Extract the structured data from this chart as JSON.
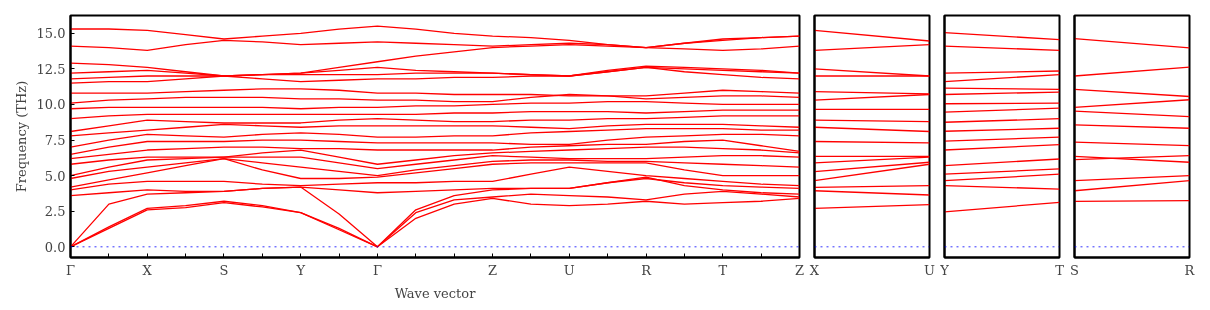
{
  "chart_data": [
    {
      "type": "line",
      "xlabel": "Wave vector",
      "ylabel": "Frequency (THz)",
      "categories": [
        "Γ",
        null,
        "X",
        null,
        "S",
        null,
        "Y",
        null,
        "Γ",
        null,
        null,
        "Z",
        null,
        "U",
        null,
        "R",
        null,
        "T",
        null,
        "Z"
      ],
      "ylim": [
        -0.75,
        16.25
      ],
      "yticks": [
        {
          "value": 0,
          "label": "0.0"
        },
        {
          "value": 2.5,
          "label": "2.5"
        },
        {
          "value": 5,
          "label": "5.0"
        },
        {
          "value": 7.5,
          "label": "7.5"
        },
        {
          "value": 10,
          "label": "10.0"
        },
        {
          "value": 12.5,
          "label": "12.5"
        },
        {
          "value": 15,
          "label": "15.0"
        }
      ],
      "ref_lines": [
        {
          "axis": "y",
          "value": 0,
          "color": "#0000ff",
          "line_style": "dotted"
        }
      ],
      "series": [
        {
          "color": "#ff0000",
          "values": [
            0,
            1.3,
            2.6,
            2.75,
            3.1,
            2.8,
            2.4,
            1.2,
            0,
            2.0,
            3.0,
            3.4,
            3.0,
            2.9,
            3.0,
            3.2,
            3.0,
            3.1,
            3.2,
            3.4
          ]
        },
        {
          "color": "#ff0000",
          "values": [
            0,
            1.4,
            2.7,
            2.9,
            3.2,
            2.9,
            2.4,
            1.3,
            0,
            2.4,
            3.3,
            3.5,
            3.7,
            3.6,
            3.5,
            3.3,
            3.7,
            3.9,
            3.7,
            3.5
          ]
        },
        {
          "color": "#ff0000",
          "values": [
            0,
            3.0,
            3.7,
            3.8,
            3.9,
            4.1,
            4.2,
            2.3,
            0,
            2.6,
            3.6,
            4.0,
            4.1,
            4.1,
            4.5,
            4.9,
            4.3,
            4.0,
            3.8,
            3.7
          ]
        },
        {
          "color": "#ff0000",
          "values": [
            3.6,
            3.8,
            4.0,
            3.9,
            3.9,
            4.1,
            4.2,
            4.0,
            3.8,
            3.9,
            4.0,
            4.1,
            4.1,
            4.1,
            4.5,
            4.8,
            4.5,
            4.3,
            4.2,
            4.1
          ]
        },
        {
          "color": "#ff0000",
          "values": [
            4.0,
            4.4,
            4.6,
            4.6,
            4.6,
            4.4,
            4.3,
            4.4,
            4.5,
            4.5,
            4.6,
            4.6,
            5.1,
            5.6,
            5.3,
            5.0,
            4.8,
            4.6,
            4.4,
            4.3
          ]
        },
        {
          "color": "#ff0000",
          "values": [
            4.2,
            4.7,
            5.2,
            5.7,
            6.2,
            5.4,
            4.8,
            4.8,
            4.9,
            5.2,
            5.5,
            5.8,
            5.9,
            5.9,
            5.9,
            5.9,
            5.4,
            5.0,
            5.0,
            5.0
          ]
        },
        {
          "color": "#ff0000",
          "values": [
            4.8,
            5.3,
            5.6,
            5.9,
            6.2,
            5.9,
            5.6,
            5.3,
            5.0,
            5.4,
            5.7,
            6.0,
            6.1,
            6.1,
            6.0,
            6.0,
            5.9,
            5.8,
            5.7,
            5.6
          ]
        },
        {
          "color": "#ff0000",
          "values": [
            5.0,
            5.6,
            6.1,
            6.2,
            6.3,
            6.3,
            6.3,
            5.9,
            5.5,
            5.8,
            6.1,
            6.4,
            6.3,
            6.2,
            6.2,
            6.2,
            6.3,
            6.4,
            6.4,
            6.3
          ]
        },
        {
          "color": "#ff0000",
          "values": [
            5.8,
            6.1,
            6.3,
            6.3,
            6.3,
            6.6,
            6.8,
            6.3,
            5.8,
            6.1,
            6.4,
            6.6,
            6.7,
            6.8,
            6.9,
            7.0,
            7.0,
            6.9,
            6.8,
            6.6
          ]
        },
        {
          "color": "#ff0000",
          "values": [
            6.2,
            6.5,
            6.8,
            6.9,
            7.0,
            7.0,
            6.9,
            6.9,
            6.8,
            6.8,
            6.8,
            6.8,
            7.0,
            7.1,
            7.2,
            7.2,
            7.4,
            7.5,
            7.1,
            6.7
          ]
        },
        {
          "color": "#ff0000",
          "values": [
            6.5,
            7.0,
            7.4,
            7.4,
            7.4,
            7.5,
            7.5,
            7.4,
            7.3,
            7.3,
            7.3,
            7.3,
            7.2,
            7.2,
            7.5,
            7.7,
            7.8,
            7.9,
            7.9,
            7.8
          ]
        },
        {
          "color": "#ff0000",
          "values": [
            7.0,
            7.5,
            7.9,
            7.8,
            7.7,
            7.9,
            8.0,
            7.9,
            7.7,
            7.7,
            7.8,
            7.8,
            8.0,
            8.1,
            8.2,
            8.3,
            8.3,
            8.3,
            8.2,
            8.2
          ]
        },
        {
          "color": "#ff0000",
          "values": [
            7.8,
            8.0,
            8.2,
            8.4,
            8.6,
            8.5,
            8.4,
            8.5,
            8.5,
            8.5,
            8.5,
            8.5,
            8.4,
            8.3,
            8.5,
            8.6,
            8.6,
            8.6,
            8.5,
            8.4
          ]
        },
        {
          "color": "#ff0000",
          "values": [
            8.1,
            8.5,
            8.9,
            8.8,
            8.7,
            8.7,
            8.7,
            8.9,
            9.0,
            8.9,
            8.8,
            8.8,
            8.9,
            8.9,
            9.0,
            9.0,
            9.1,
            9.2,
            9.2,
            9.2
          ]
        },
        {
          "color": "#ff0000",
          "values": [
            9.0,
            9.2,
            9.3,
            9.3,
            9.3,
            9.3,
            9.3,
            9.3,
            9.3,
            9.3,
            9.4,
            9.4,
            9.5,
            9.5,
            9.5,
            9.4,
            9.5,
            9.6,
            9.6,
            9.6
          ]
        },
        {
          "color": "#ff0000",
          "values": [
            9.7,
            9.8,
            9.8,
            9.8,
            9.8,
            9.8,
            9.7,
            9.8,
            9.8,
            9.9,
            9.9,
            10.0,
            10.1,
            10.1,
            10.2,
            10.2,
            10.1,
            10.0,
            10.0,
            10.0
          ]
        },
        {
          "color": "#ff0000",
          "values": [
            10.1,
            10.3,
            10.4,
            10.5,
            10.5,
            10.5,
            10.4,
            10.4,
            10.3,
            10.3,
            10.2,
            10.2,
            10.5,
            10.7,
            10.6,
            10.4,
            10.5,
            10.6,
            10.6,
            10.5
          ]
        },
        {
          "color": "#ff0000",
          "values": [
            10.8,
            10.8,
            10.8,
            10.9,
            11.0,
            11.1,
            11.1,
            11.0,
            10.8,
            10.8,
            10.7,
            10.7,
            10.7,
            10.6,
            10.6,
            10.6,
            10.8,
            11.0,
            10.9,
            10.8
          ]
        },
        {
          "color": "#ff0000",
          "values": [
            11.5,
            11.6,
            11.6,
            11.8,
            12.0,
            11.8,
            11.6,
            11.7,
            11.8,
            11.8,
            11.9,
            11.9,
            12.0,
            12.0,
            12.3,
            12.6,
            12.3,
            12.1,
            11.9,
            11.8
          ]
        },
        {
          "color": "#ff0000",
          "values": [
            11.8,
            11.9,
            12.0,
            12.0,
            12.0,
            12.1,
            12.1,
            12.1,
            12.1,
            12.2,
            12.2,
            12.2,
            12.1,
            12.0,
            12.3,
            12.6,
            12.5,
            12.4,
            12.3,
            12.2
          ]
        },
        {
          "color": "#ff0000",
          "values": [
            12.2,
            12.3,
            12.4,
            12.2,
            12.0,
            12.1,
            12.2,
            12.4,
            12.6,
            12.4,
            12.3,
            12.2,
            12.1,
            12.0,
            12.4,
            12.7,
            12.6,
            12.5,
            12.4,
            12.2
          ]
        },
        {
          "color": "#ff0000",
          "values": [
            12.9,
            12.8,
            12.6,
            12.3,
            12.0,
            12.1,
            12.2,
            12.6,
            13.0,
            13.4,
            13.7,
            14.0,
            14.1,
            14.2,
            14.1,
            14.0,
            13.9,
            13.8,
            13.9,
            14.1
          ]
        },
        {
          "color": "#ff0000",
          "values": [
            14.1,
            14.0,
            13.8,
            14.2,
            14.5,
            14.4,
            14.2,
            14.3,
            14.4,
            14.3,
            14.2,
            14.1,
            14.2,
            14.3,
            14.2,
            14.0,
            14.3,
            14.5,
            14.7,
            14.8
          ]
        },
        {
          "color": "#ff0000",
          "values": [
            15.3,
            15.3,
            15.2,
            14.9,
            14.6,
            14.8,
            15.0,
            15.3,
            15.5,
            15.3,
            15.0,
            14.8,
            14.7,
            14.5,
            14.2,
            14.0,
            14.3,
            14.6,
            14.7,
            14.8
          ]
        }
      ]
    },
    {
      "type": "line",
      "tick_labels": "x",
      "categories": [
        "X",
        "U"
      ],
      "ylim": [
        -0.75,
        16.25
      ],
      "yticks": [
        {
          "value": 0,
          "label": null
        },
        {
          "value": 2.5,
          "label": null
        },
        {
          "value": 5,
          "label": null
        },
        {
          "value": 7.5,
          "label": null
        },
        {
          "value": 10,
          "label": null
        },
        {
          "value": 12.5,
          "label": null
        },
        {
          "value": 15,
          "label": null
        }
      ],
      "ref_lines": [
        {
          "axis": "y",
          "value": 0,
          "color": "#0000ff",
          "line_style": "dotted"
        }
      ],
      "series": [
        {
          "color": "#ff0000",
          "values": [
            15.2,
            14.46
          ]
        },
        {
          "color": "#ff0000",
          "values": [
            13.8,
            14.2
          ]
        },
        {
          "color": "#ff0000",
          "values": [
            12.5,
            12.0
          ]
        },
        {
          "color": "#ff0000",
          "values": [
            12.0,
            12.0
          ]
        },
        {
          "color": "#ff0000",
          "values": [
            10.9,
            10.75
          ]
        },
        {
          "color": "#ff0000",
          "values": [
            10.3,
            10.7
          ]
        },
        {
          "color": "#ff0000",
          "values": [
            9.65,
            9.65
          ]
        },
        {
          "color": "#ff0000",
          "values": [
            8.9,
            8.8
          ]
        },
        {
          "color": "#ff0000",
          "values": [
            8.4,
            8.1
          ]
        },
        {
          "color": "#ff0000",
          "values": [
            7.4,
            7.3
          ]
        },
        {
          "color": "#ff0000",
          "values": [
            6.36,
            6.36
          ]
        },
        {
          "color": "#ff0000",
          "values": [
            5.9,
            6.3
          ]
        },
        {
          "color": "#ff0000",
          "values": [
            5.28,
            5.94
          ]
        },
        {
          "color": "#ff0000",
          "values": [
            4.65,
            5.8
          ]
        },
        {
          "color": "#ff0000",
          "values": [
            4.18,
            4.3
          ]
        },
        {
          "color": "#ff0000",
          "values": [
            3.94,
            3.64
          ]
        },
        {
          "color": "#ff0000",
          "values": [
            2.7,
            2.96
          ]
        }
      ]
    },
    {
      "type": "line",
      "tick_labels": "x",
      "categories": [
        "Y",
        "T"
      ],
      "ylim": [
        -0.75,
        16.25
      ],
      "yticks": [
        {
          "value": 0,
          "label": null
        },
        {
          "value": 2.5,
          "label": null
        },
        {
          "value": 5,
          "label": null
        },
        {
          "value": 7.5,
          "label": null
        },
        {
          "value": 10,
          "label": null
        },
        {
          "value": 12.5,
          "label": null
        },
        {
          "value": 15,
          "label": null
        }
      ],
      "ref_lines": [
        {
          "axis": "y",
          "value": 0,
          "color": "#0000ff",
          "line_style": "dotted"
        }
      ],
      "series": [
        {
          "color": "#ff0000",
          "values": [
            15.05,
            14.55
          ]
        },
        {
          "color": "#ff0000",
          "values": [
            14.1,
            13.8
          ]
        },
        {
          "color": "#ff0000",
          "values": [
            12.2,
            12.35
          ]
        },
        {
          "color": "#ff0000",
          "values": [
            11.6,
            12.1
          ]
        },
        {
          "color": "#ff0000",
          "values": [
            11.15,
            11.06
          ]
        },
        {
          "color": "#ff0000",
          "values": [
            10.7,
            10.87
          ]
        },
        {
          "color": "#ff0000",
          "values": [
            10.05,
            10.1
          ]
        },
        {
          "color": "#ff0000",
          "values": [
            9.46,
            9.74
          ]
        },
        {
          "color": "#ff0000",
          "values": [
            8.75,
            9.0
          ]
        },
        {
          "color": "#ff0000",
          "values": [
            8.12,
            8.33
          ]
        },
        {
          "color": "#ff0000",
          "values": [
            7.42,
            7.7
          ]
        },
        {
          "color": "#ff0000",
          "values": [
            6.8,
            7.18
          ]
        },
        {
          "color": "#ff0000",
          "values": [
            5.7,
            6.17
          ]
        },
        {
          "color": "#ff0000",
          "values": [
            5.1,
            5.47
          ]
        },
        {
          "color": "#ff0000",
          "values": [
            4.65,
            5.1
          ]
        },
        {
          "color": "#ff0000",
          "values": [
            4.3,
            4.06
          ]
        },
        {
          "color": "#ff0000",
          "values": [
            2.46,
            3.12
          ]
        }
      ]
    },
    {
      "type": "line",
      "tick_labels": "x",
      "categories": [
        "S",
        "R"
      ],
      "ylim": [
        -0.75,
        16.25
      ],
      "yticks": [
        {
          "value": 0,
          "label": null
        },
        {
          "value": 2.5,
          "label": null
        },
        {
          "value": 5,
          "label": null
        },
        {
          "value": 7.5,
          "label": null
        },
        {
          "value": 10,
          "label": null
        },
        {
          "value": 12.5,
          "label": null
        },
        {
          "value": 15,
          "label": null
        }
      ],
      "ref_lines": [
        {
          "axis": "y",
          "value": 0,
          "color": "#0000ff",
          "line_style": "dotted"
        }
      ],
      "series": [
        {
          "color": "#ff0000",
          "values": [
            14.62,
            13.97
          ]
        },
        {
          "color": "#ff0000",
          "values": [
            12.0,
            12.63
          ]
        },
        {
          "color": "#ff0000",
          "values": [
            11.06,
            10.56
          ]
        },
        {
          "color": "#ff0000",
          "values": [
            9.8,
            10.33
          ]
        },
        {
          "color": "#ff0000",
          "values": [
            9.53,
            9.15
          ]
        },
        {
          "color": "#ff0000",
          "values": [
            8.57,
            8.33
          ]
        },
        {
          "color": "#ff0000",
          "values": [
            7.35,
            7.11
          ]
        },
        {
          "color": "#ff0000",
          "values": [
            6.36,
            5.94
          ]
        },
        {
          "color": "#ff0000",
          "values": [
            6.13,
            6.41
          ]
        },
        {
          "color": "#ff0000",
          "values": [
            4.65,
            5.0
          ]
        },
        {
          "color": "#ff0000",
          "values": [
            3.94,
            4.65
          ]
        },
        {
          "color": "#ff0000",
          "values": [
            3.19,
            3.24
          ]
        }
      ]
    }
  ]
}
